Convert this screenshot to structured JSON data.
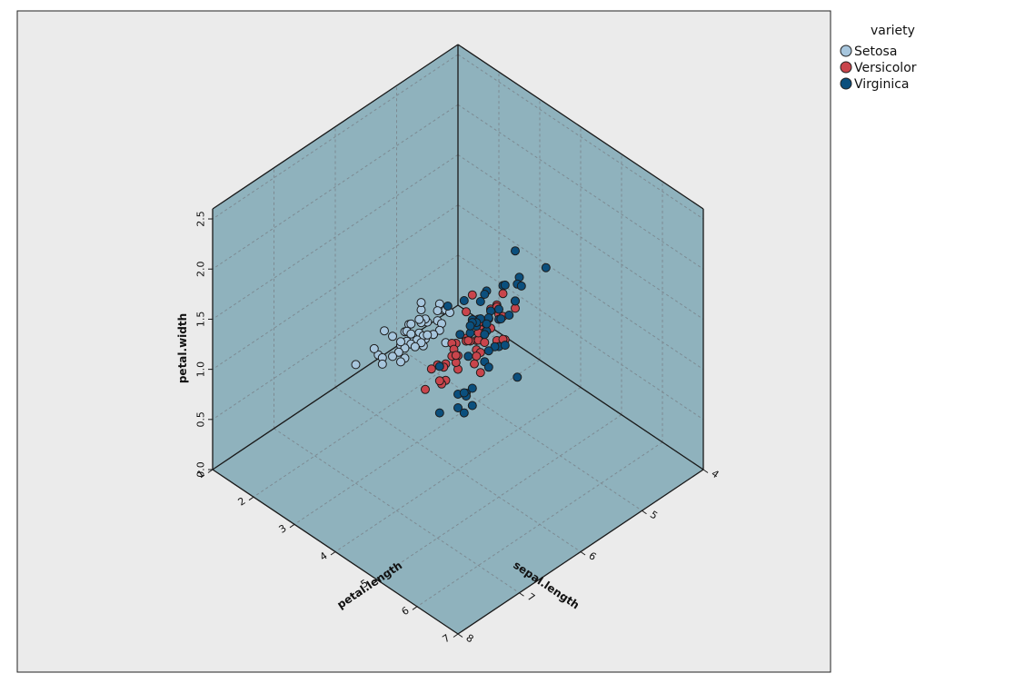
{
  "chart_data": {
    "type": "scatter",
    "projection": "3d-isometric",
    "axes": {
      "x": {
        "label": "sepal.length",
        "range": [
          4,
          8
        ],
        "ticks": [
          "4",
          "5",
          "6",
          "7",
          "8"
        ]
      },
      "y": {
        "label": "petal.length",
        "range": [
          1,
          7
        ],
        "ticks": [
          "1",
          "2",
          "3",
          "4",
          "5",
          "6",
          "7"
        ]
      },
      "z": {
        "label": "petal.width",
        "range": [
          0,
          2.6
        ],
        "ticks": [
          "0.0",
          "0.5",
          "1.0",
          "1.5",
          "2.0",
          "2.5"
        ]
      }
    },
    "grid": true,
    "legend": {
      "title": "variety",
      "position": "top-right",
      "entries": [
        {
          "name": "Setosa",
          "color": "#a7c6dd"
        },
        {
          "name": "Versicolor",
          "color": "#c9454c"
        },
        {
          "name": "Virginica",
          "color": "#0b4f7d"
        }
      ]
    },
    "series": [
      {
        "name": "Setosa",
        "color": "#a7c6dd",
        "points": [
          [
            5.1,
            1.4,
            0.2
          ],
          [
            4.9,
            1.4,
            0.2
          ],
          [
            4.7,
            1.3,
            0.2
          ],
          [
            4.6,
            1.5,
            0.2
          ],
          [
            5.0,
            1.4,
            0.2
          ],
          [
            5.4,
            1.7,
            0.4
          ],
          [
            4.6,
            1.4,
            0.3
          ],
          [
            5.0,
            1.5,
            0.2
          ],
          [
            4.4,
            1.4,
            0.2
          ],
          [
            4.9,
            1.5,
            0.1
          ],
          [
            5.4,
            1.5,
            0.2
          ],
          [
            4.8,
            1.6,
            0.2
          ],
          [
            4.8,
            1.4,
            0.1
          ],
          [
            4.3,
            1.1,
            0.1
          ],
          [
            5.8,
            1.2,
            0.2
          ],
          [
            5.7,
            1.5,
            0.4
          ],
          [
            5.4,
            1.3,
            0.4
          ],
          [
            5.1,
            1.4,
            0.3
          ],
          [
            5.7,
            1.7,
            0.3
          ],
          [
            5.1,
            1.5,
            0.3
          ],
          [
            5.4,
            1.7,
            0.2
          ],
          [
            5.1,
            1.5,
            0.4
          ],
          [
            4.6,
            1.0,
            0.2
          ],
          [
            5.1,
            1.7,
            0.5
          ],
          [
            4.8,
            1.9,
            0.2
          ],
          [
            5.0,
            1.6,
            0.2
          ],
          [
            5.0,
            1.6,
            0.4
          ],
          [
            5.2,
            1.5,
            0.2
          ],
          [
            5.2,
            1.4,
            0.2
          ],
          [
            4.7,
            1.6,
            0.2
          ],
          [
            4.8,
            1.6,
            0.2
          ],
          [
            5.4,
            1.5,
            0.4
          ],
          [
            5.2,
            1.5,
            0.1
          ],
          [
            5.5,
            1.4,
            0.2
          ],
          [
            4.9,
            1.5,
            0.2
          ],
          [
            5.0,
            1.2,
            0.2
          ],
          [
            5.5,
            1.3,
            0.2
          ],
          [
            4.9,
            1.4,
            0.1
          ],
          [
            4.4,
            1.3,
            0.2
          ],
          [
            5.1,
            1.5,
            0.2
          ],
          [
            5.0,
            1.3,
            0.3
          ],
          [
            4.5,
            1.3,
            0.3
          ],
          [
            4.4,
            1.3,
            0.2
          ],
          [
            5.0,
            1.6,
            0.6
          ],
          [
            5.1,
            1.9,
            0.4
          ],
          [
            4.8,
            1.4,
            0.3
          ],
          [
            5.1,
            1.6,
            0.2
          ],
          [
            4.6,
            1.4,
            0.2
          ],
          [
            5.3,
            1.5,
            0.2
          ],
          [
            5.0,
            1.4,
            0.2
          ]
        ]
      },
      {
        "name": "Versicolor",
        "color": "#c9454c",
        "points": [
          [
            7.0,
            4.7,
            1.4
          ],
          [
            6.4,
            4.5,
            1.5
          ],
          [
            6.9,
            4.9,
            1.5
          ],
          [
            5.5,
            4.0,
            1.3
          ],
          [
            6.5,
            4.6,
            1.5
          ],
          [
            5.7,
            4.5,
            1.3
          ],
          [
            6.3,
            4.7,
            1.6
          ],
          [
            4.9,
            3.3,
            1.0
          ],
          [
            6.6,
            4.6,
            1.3
          ],
          [
            5.2,
            3.9,
            1.4
          ],
          [
            5.0,
            3.5,
            1.0
          ],
          [
            5.9,
            4.2,
            1.5
          ],
          [
            6.0,
            4.0,
            1.0
          ],
          [
            6.1,
            4.7,
            1.4
          ],
          [
            5.6,
            3.6,
            1.3
          ],
          [
            6.7,
            4.4,
            1.4
          ],
          [
            5.6,
            4.5,
            1.5
          ],
          [
            5.8,
            4.1,
            1.0
          ],
          [
            6.2,
            4.5,
            1.5
          ],
          [
            5.6,
            3.9,
            1.1
          ],
          [
            5.9,
            4.8,
            1.8
          ],
          [
            6.1,
            4.0,
            1.3
          ],
          [
            6.3,
            4.9,
            1.5
          ],
          [
            6.1,
            4.7,
            1.2
          ],
          [
            6.4,
            4.3,
            1.3
          ],
          [
            6.6,
            4.4,
            1.4
          ],
          [
            6.8,
            4.8,
            1.4
          ],
          [
            6.7,
            5.0,
            1.7
          ],
          [
            6.0,
            4.5,
            1.5
          ],
          [
            5.7,
            3.5,
            1.0
          ],
          [
            5.5,
            3.8,
            1.1
          ],
          [
            5.5,
            3.7,
            1.0
          ],
          [
            5.8,
            3.9,
            1.2
          ],
          [
            6.0,
            5.1,
            1.6
          ],
          [
            5.4,
            4.5,
            1.5
          ],
          [
            6.0,
            4.5,
            1.6
          ],
          [
            6.7,
            4.7,
            1.5
          ],
          [
            6.3,
            4.4,
            1.3
          ],
          [
            5.6,
            4.1,
            1.3
          ],
          [
            5.5,
            4.0,
            1.3
          ],
          [
            5.5,
            4.4,
            1.2
          ],
          [
            6.1,
            4.6,
            1.4
          ],
          [
            5.8,
            4.0,
            1.2
          ],
          [
            5.0,
            3.3,
            1.0
          ],
          [
            5.6,
            4.2,
            1.3
          ],
          [
            5.7,
            4.2,
            1.2
          ],
          [
            5.7,
            4.2,
            1.3
          ],
          [
            6.2,
            4.3,
            1.3
          ],
          [
            5.1,
            3.0,
            1.1
          ],
          [
            5.7,
            4.1,
            1.3
          ]
        ]
      },
      {
        "name": "Virginica",
        "color": "#0b4f7d",
        "points": [
          [
            6.3,
            6.0,
            2.5
          ],
          [
            5.8,
            5.1,
            1.9
          ],
          [
            7.1,
            5.9,
            2.1
          ],
          [
            6.3,
            5.6,
            1.8
          ],
          [
            6.5,
            5.8,
            2.2
          ],
          [
            7.6,
            6.6,
            2.1
          ],
          [
            4.9,
            4.5,
            1.7
          ],
          [
            7.3,
            6.3,
            1.8
          ],
          [
            6.7,
            5.8,
            1.8
          ],
          [
            7.2,
            6.1,
            2.5
          ],
          [
            6.5,
            5.1,
            2.0
          ],
          [
            6.4,
            5.3,
            1.9
          ],
          [
            6.8,
            5.5,
            2.1
          ],
          [
            5.7,
            5.0,
            2.0
          ],
          [
            5.8,
            5.1,
            2.4
          ],
          [
            6.4,
            5.3,
            2.3
          ],
          [
            6.5,
            5.5,
            1.8
          ],
          [
            7.7,
            6.7,
            2.2
          ],
          [
            7.7,
            6.9,
            2.3
          ],
          [
            6.0,
            5.0,
            1.5
          ],
          [
            6.9,
            5.7,
            2.3
          ],
          [
            5.6,
            4.9,
            2.0
          ],
          [
            7.7,
            6.7,
            2.0
          ],
          [
            6.3,
            4.9,
            1.8
          ],
          [
            6.7,
            5.7,
            2.1
          ],
          [
            7.2,
            6.0,
            1.8
          ],
          [
            6.2,
            4.8,
            1.8
          ],
          [
            6.1,
            4.9,
            1.8
          ],
          [
            6.4,
            5.6,
            2.1
          ],
          [
            7.2,
            5.8,
            1.6
          ],
          [
            7.4,
            6.1,
            1.9
          ],
          [
            7.9,
            6.4,
            2.0
          ],
          [
            6.4,
            5.6,
            2.2
          ],
          [
            6.3,
            5.1,
            1.5
          ],
          [
            6.1,
            5.6,
            1.4
          ],
          [
            7.7,
            6.1,
            2.3
          ],
          [
            6.3,
            5.6,
            2.4
          ],
          [
            6.4,
            5.5,
            1.8
          ],
          [
            6.0,
            4.8,
            1.8
          ],
          [
            6.9,
            5.4,
            2.1
          ],
          [
            6.7,
            5.6,
            2.4
          ],
          [
            6.9,
            5.1,
            2.3
          ],
          [
            5.8,
            5.1,
            1.9
          ],
          [
            6.8,
            5.9,
            2.3
          ],
          [
            6.7,
            5.7,
            2.5
          ],
          [
            6.7,
            5.2,
            2.3
          ],
          [
            6.3,
            5.0,
            1.9
          ],
          [
            6.5,
            5.2,
            2.0
          ],
          [
            6.2,
            5.4,
            2.3
          ],
          [
            5.9,
            5.1,
            1.8
          ]
        ]
      }
    ]
  }
}
